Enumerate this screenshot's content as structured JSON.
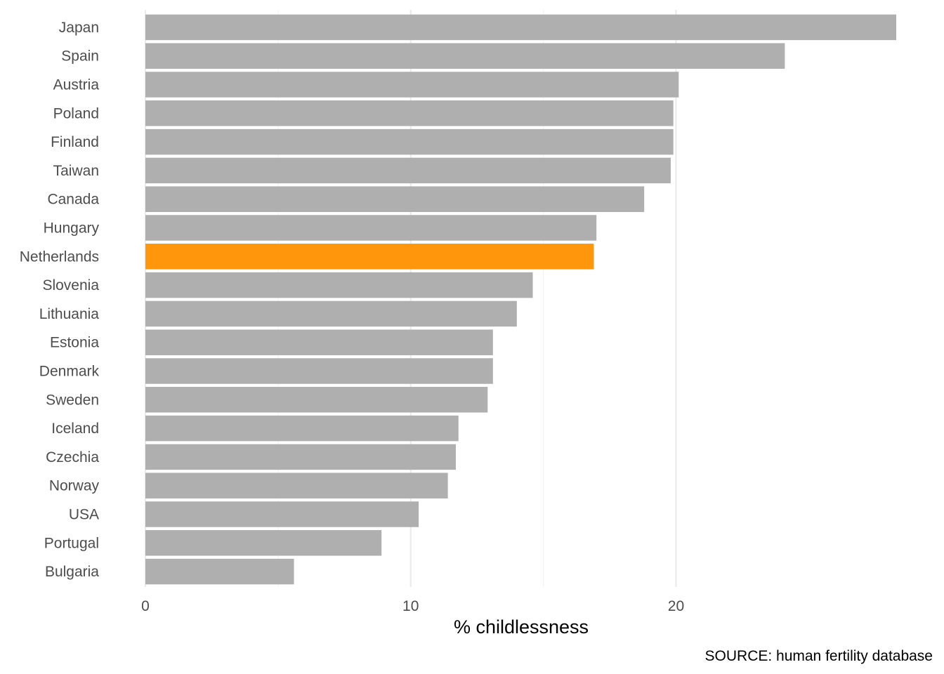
{
  "chart_data": {
    "type": "bar",
    "orientation": "horizontal",
    "categories": [
      "Japan",
      "Spain",
      "Austria",
      "Poland",
      "Finland",
      "Taiwan",
      "Canada",
      "Hungary",
      "Netherlands",
      "Slovenia",
      "Lithuania",
      "Estonia",
      "Denmark",
      "Sweden",
      "Iceland",
      "Czechia",
      "Norway",
      "USA",
      "Portugal",
      "Bulgaria"
    ],
    "values": [
      28.3,
      24.1,
      20.1,
      19.9,
      19.9,
      19.8,
      18.8,
      17.0,
      16.9,
      14.6,
      14.0,
      13.1,
      13.1,
      12.9,
      11.8,
      11.7,
      11.4,
      10.3,
      8.9,
      5.6
    ],
    "highlight": "Netherlands",
    "colors": {
      "default": "#afafaf",
      "highlight": "#ff960c",
      "grid": "#ebebeb"
    },
    "xlabel": "% childlessness",
    "xticks": [
      0,
      10,
      20
    ],
    "xlim": [
      0,
      28.3
    ],
    "grid": true,
    "caption": "SOURCE: human fertility database"
  }
}
